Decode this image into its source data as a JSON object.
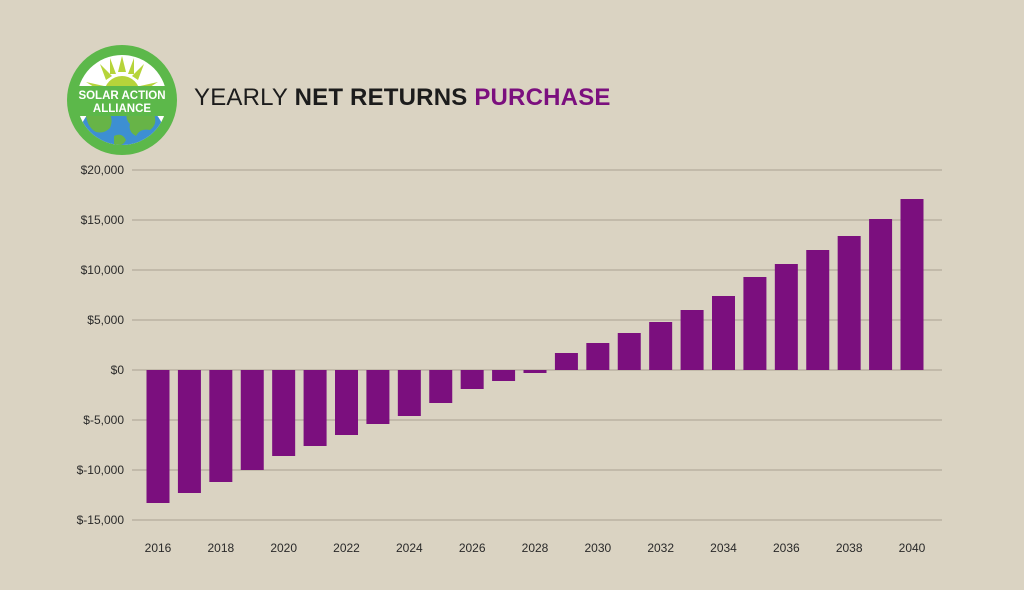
{
  "header": {
    "logo_text_line1": "SOLAR ACTION",
    "logo_text_line2": "ALLIANCE",
    "title_part1": "YEARLY ",
    "title_part2": "NET RETURNS",
    "title_part3": " PURCHASE"
  },
  "colors": {
    "background": "#dad3c2",
    "bar": "#7b0f7e",
    "accent": "#7b0f7e",
    "grid": "#a9a293",
    "logo_ring": "#5cb84a",
    "logo_sun": "#b6d43a",
    "logo_sky": "#ffffff",
    "logo_earth_water": "#3d8fd2",
    "logo_earth_land": "#67b447"
  },
  "chart_data": {
    "type": "bar",
    "title": "YEARLY NET RETURNS PURCHASE",
    "xlabel": "",
    "ylabel": "",
    "ylim": [
      -15000,
      20000
    ],
    "yticks": [
      20000,
      15000,
      10000,
      5000,
      0,
      -5000,
      -10000,
      -15000
    ],
    "ytick_labels": [
      "$20,000",
      "$15,000",
      "$10,000",
      "$5,000",
      "$0",
      "$-5,000",
      "$-10,000",
      "$-15,000"
    ],
    "categories": [
      2016,
      2017,
      2018,
      2019,
      2020,
      2021,
      2022,
      2023,
      2024,
      2025,
      2026,
      2027,
      2028,
      2029,
      2030,
      2031,
      2032,
      2033,
      2034,
      2035,
      2036,
      2037,
      2038,
      2039,
      2040
    ],
    "xtick_labels": [
      "2016",
      "2018",
      "2020",
      "2022",
      "2024",
      "2026",
      "2028",
      "2030",
      "2032",
      "2034",
      "2036",
      "2038",
      "2040"
    ],
    "values": [
      -13300,
      -12300,
      -11200,
      -10000,
      -8600,
      -7600,
      -6500,
      -5400,
      -4600,
      -3300,
      -1900,
      -1100,
      -300,
      1700,
      2700,
      3700,
      4800,
      6000,
      7400,
      9300,
      10600,
      12000,
      13400,
      15100,
      17100
    ],
    "grid": true,
    "legend": "none"
  }
}
